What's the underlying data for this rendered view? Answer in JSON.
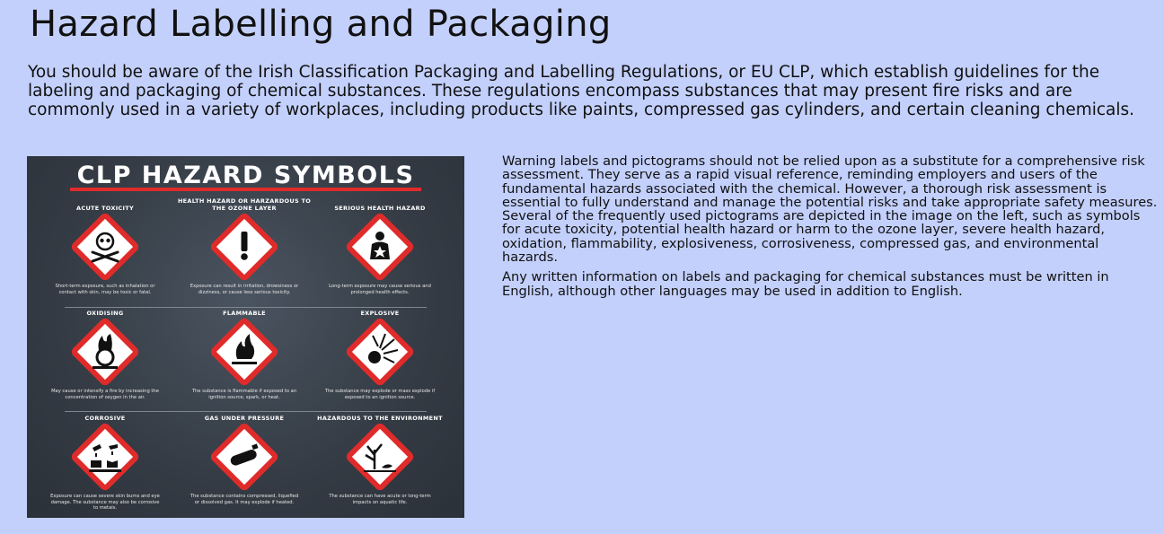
{
  "page": {
    "title": "Hazard Labelling and Packaging",
    "intro": "You should be aware of the Irish Classification Packaging and Labelling Regulations, or EU CLP, which establish guidelines for the labeling and packaging of chemical substances. These regulations encompass substances that may present fire risks and are commonly used in a variety of workplaces, including products like paints, compressed gas cylinders, and certain cleaning chemicals."
  },
  "poster": {
    "title": "CLP HAZARD SYMBOLS",
    "cells": [
      {
        "label": "ACUTE TOXICITY",
        "icon": "skull-crossbones-icon",
        "desc": "Short-term exposure, such as inhalation or contact with skin, may be toxic or fatal."
      },
      {
        "label": "HEALTH HAZARD OR HARZARDOUS TO THE OZONE LAYER",
        "icon": "exclamation-icon",
        "desc": "Exposure can result in irritation, drowsiness or dizziness, or cause less serious toxicity."
      },
      {
        "label": "SERIOUS HEALTH HAZARD",
        "icon": "health-hazard-icon",
        "desc": "Long-term exposure may cause serious and prolonged health effects."
      },
      {
        "label": "OXIDISING",
        "icon": "flame-over-circle-icon",
        "desc": "May cause or intensify a fire by increasing the concentration of oxygen in the air."
      },
      {
        "label": "FLAMMABLE",
        "icon": "flame-icon",
        "desc": "The substance is flammable if exposed to an ignition source, spark, or heat."
      },
      {
        "label": "EXPLOSIVE",
        "icon": "exploding-bomb-icon",
        "desc": "The substance may explode or mass explode if exposed to an ignition source."
      },
      {
        "label": "CORROSIVE",
        "icon": "corrosion-icon",
        "desc": "Exposure can cause severe skin burns and eye damage. The substance may also be corrosive to metals."
      },
      {
        "label": "GAS UNDER PRESSURE",
        "icon": "gas-cylinder-icon",
        "desc": "The substance contains compressed, liquefied or dissolved gas. It may explode if heated."
      },
      {
        "label": "HAZARDOUS TO THE ENVIRONMENT",
        "icon": "environment-icon",
        "desc": "The substance can have acute or long-term impacts on aquatic life."
      }
    ]
  },
  "side": {
    "p1": "Warning labels and pictograms should not be relied upon as a substitute for a comprehensive risk assessment. They serve as a rapid visual reference, reminding employers and users of the fundamental hazards associated with the chemical. However, a thorough risk assessment is essential to fully understand and manage the potential risks and take appropriate safety measures.",
    "p2": "Several of the frequently used pictograms are depicted in the image on the left, such as symbols for acute toxicity, potential health hazard or harm to the ozone layer, severe health hazard, oxidation, flammability, explosiveness, corrosiveness, compressed gas, and environmental hazards.",
    "p3": "Any written information on labels and packaging for chemical substances must be written in English, although other languages may be used in addition to English."
  },
  "colors": {
    "background": "#c3d0fb",
    "poster_bg": "#343b44",
    "accent_red": "#e02b2b"
  }
}
